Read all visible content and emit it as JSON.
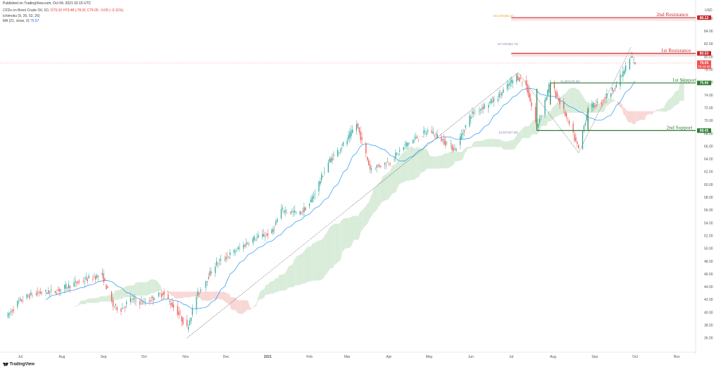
{
  "header": {
    "published": "Published on TradingView.com, Oct 04, 2021 02:15 UTC",
    "symbol_line": "CFDs on Brent Crude Oil, 1D,",
    "ohlc": "O79.33 H79.48 L78.91 C79.05 −0.09 (−0.11%)",
    "ichimoku": "Ichimoku (9, 26, 52, 26)",
    "ma_label": "MA (21, close, 0)",
    "ma_value": "75.57"
  },
  "branding": {
    "logo_text": "TradingView",
    "logo_icon": "tradingview-logo-icon"
  },
  "price_axis": {
    "currency": "USD"
  },
  "colors": {
    "up": "#26a69a",
    "down": "#ef5350",
    "ma": "#2196f3",
    "resistance": "#c62828",
    "support": "#2e7d32",
    "cloud_bull": "#d8ecd9",
    "cloud_bear": "#f8d7d5",
    "fib": "#f5a623",
    "trendline": "#555555"
  },
  "chart_data": {
    "type": "candlestick",
    "instrument": "CFDs on Brent Crude Oil",
    "timeframe": "1D",
    "ylim": [
      34,
      88
    ],
    "y_ticks": [
      36.0,
      38.0,
      40.0,
      42.0,
      44.0,
      46.0,
      48.0,
      50.0,
      52.0,
      54.0,
      56.0,
      58.0,
      60.0,
      62.0,
      64.0,
      66.0,
      68.0,
      70.0,
      72.0,
      74.0,
      76.0,
      78.0,
      80.0,
      82.0,
      84.0,
      86.0
    ],
    "x_labels": [
      "Jul",
      "Aug",
      "Sep",
      "Oct",
      "Nov",
      "Dec",
      "2021",
      "Feb",
      "Mar",
      "Apr",
      "May",
      "Jun",
      "Jul",
      "Aug",
      "Sep",
      "Oct",
      "Nov"
    ],
    "price_path": [
      [
        "2020-06-22",
        39.5
      ],
      [
        "2020-06-29",
        41.5
      ],
      [
        "2020-07-06",
        42.5
      ],
      [
        "2020-07-13",
        43.0
      ],
      [
        "2020-07-27",
        43.3
      ],
      [
        "2020-08-10",
        44.5
      ],
      [
        "2020-08-24",
        45.5
      ],
      [
        "2020-08-31",
        45.8
      ],
      [
        "2020-09-08",
        41.0
      ],
      [
        "2020-09-14",
        40.5
      ],
      [
        "2020-09-21",
        42.0
      ],
      [
        "2020-10-01",
        41.5
      ],
      [
        "2020-10-15",
        43.0
      ],
      [
        "2020-10-26",
        40.0
      ],
      [
        "2020-11-02",
        37.5
      ],
      [
        "2020-11-09",
        42.5
      ],
      [
        "2020-11-23",
        47.5
      ],
      [
        "2020-12-07",
        49.5
      ],
      [
        "2020-12-21",
        51.5
      ],
      [
        "2021-01-04",
        52.5
      ],
      [
        "2021-01-11",
        56.0
      ],
      [
        "2021-01-25",
        55.5
      ],
      [
        "2021-02-01",
        57.0
      ],
      [
        "2021-02-15",
        63.5
      ],
      [
        "2021-03-01",
        67.0
      ],
      [
        "2021-03-08",
        69.5
      ],
      [
        "2021-03-18",
        62.5
      ],
      [
        "2021-04-01",
        63.5
      ],
      [
        "2021-04-15",
        66.5
      ],
      [
        "2021-05-01",
        68.5
      ],
      [
        "2021-05-20",
        65.5
      ],
      [
        "2021-06-01",
        71.0
      ],
      [
        "2021-06-20",
        73.5
      ],
      [
        "2021-07-05",
        77.0
      ],
      [
        "2021-07-12",
        75.5
      ],
      [
        "2021-07-20",
        69.0
      ],
      [
        "2021-07-30",
        76.0
      ],
      [
        "2021-08-10",
        71.0
      ],
      [
        "2021-08-20",
        65.5
      ],
      [
        "2021-08-27",
        72.0
      ],
      [
        "2021-09-06",
        73.0
      ],
      [
        "2021-09-15",
        75.0
      ],
      [
        "2021-09-22",
        77.5
      ],
      [
        "2021-09-28",
        80.0
      ],
      [
        "2021-10-01",
        79.05
      ]
    ],
    "series": [
      {
        "name": "MA (21, close, 0)",
        "last": 75.57
      }
    ],
    "levels": [
      {
        "label": "2nd Resistance",
        "price": 86.12,
        "price_text": "86.12",
        "kind": "resistance"
      },
      {
        "label": "1st Resistance",
        "price": 80.53,
        "price_text": "80.53",
        "kind": "resistance"
      },
      {
        "label": "1st Support",
        "price": 75.9,
        "price_text": "75.90",
        "kind": "support"
      },
      {
        "label": "2nd Support",
        "price": 68.45,
        "price_text": "68.45",
        "kind": "support"
      }
    ],
    "current_price": {
      "price": 79.05,
      "price_text": "79.05",
      "countdown": "19:44:45"
    },
    "fib_labels": [
      {
        "text": "161.80%(86.12)",
        "price": 86.12
      },
      {
        "text": "127.20%(81.73)",
        "price": 81.73
      },
      {
        "text": "61.80%(75.90)",
        "price": 75.9
      },
      {
        "text": "23.60%(67.89)",
        "price": 67.89
      }
    ],
    "grid": false,
    "legend_position": "top-left"
  }
}
